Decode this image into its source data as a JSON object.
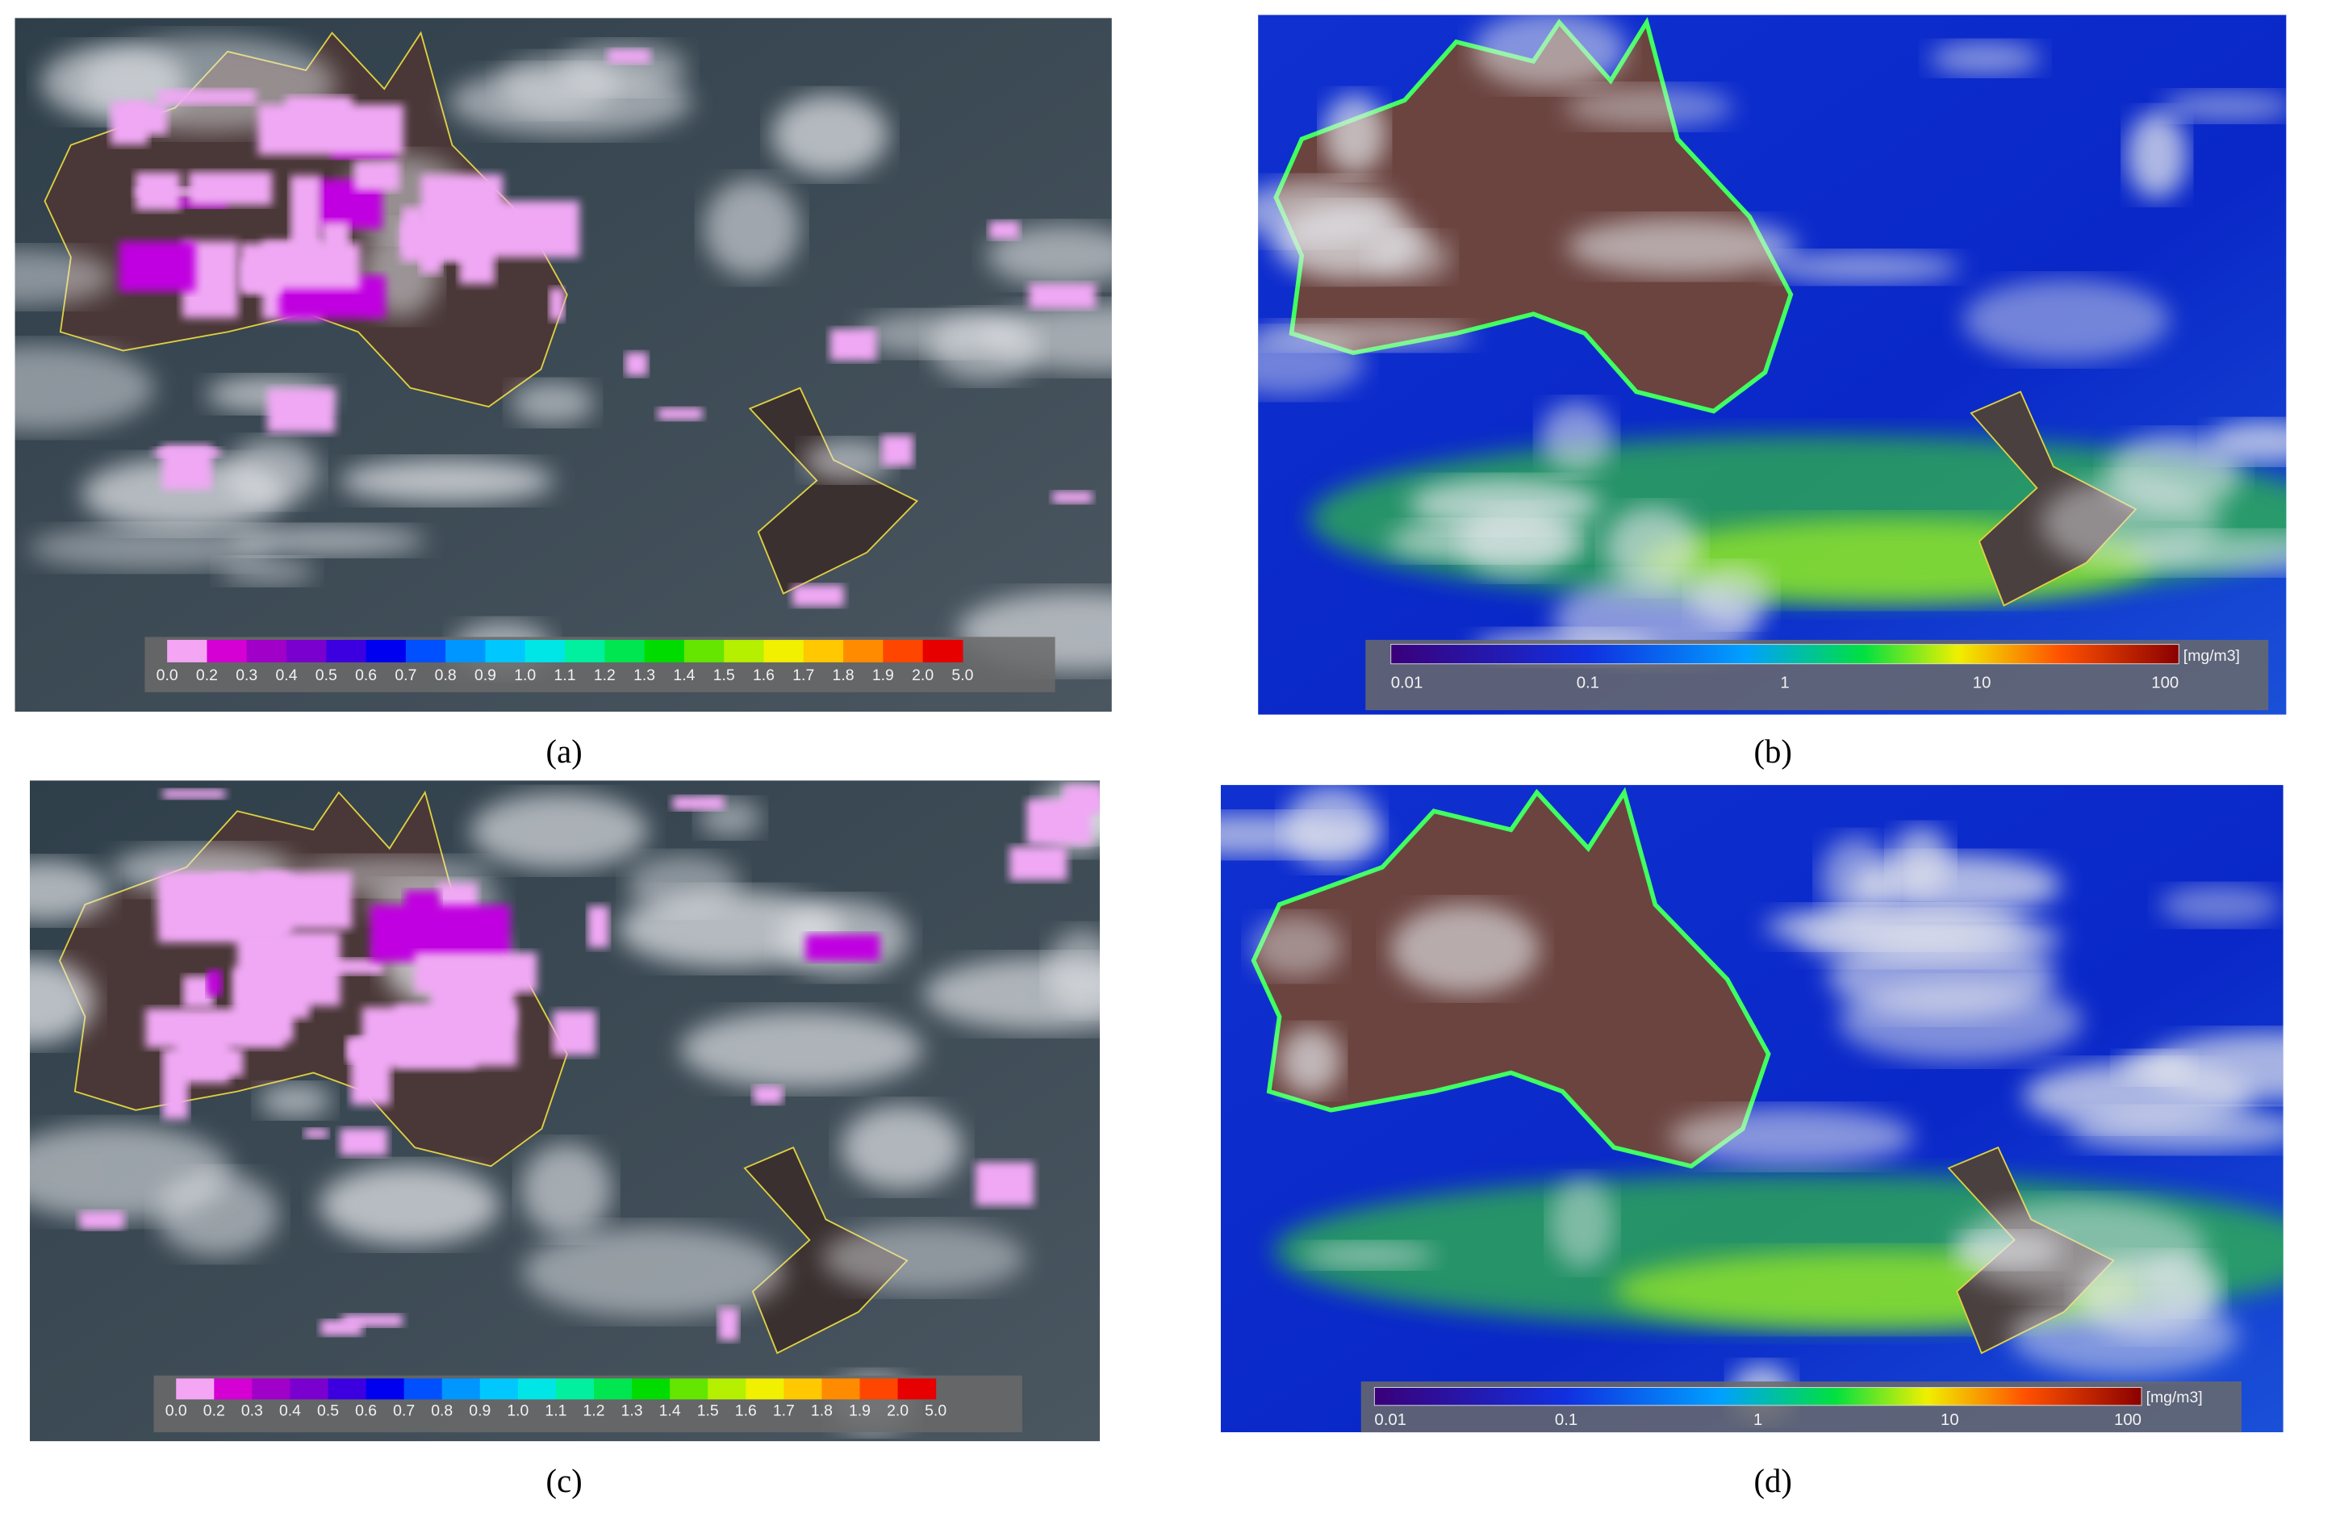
{
  "panels": [
    {
      "caption": "(a)",
      "colorbar": {
        "labels": [
          "0.0",
          "0.2",
          "0.3",
          "0.4",
          "0.5",
          "0.6",
          "0.7",
          "0.8",
          "0.9",
          "1.0",
          "1.1",
          "1.2",
          "1.3",
          "1.4",
          "1.5",
          "1.6",
          "1.7",
          "1.8",
          "1.9",
          "2.0",
          "5.0"
        ]
      }
    },
    {
      "caption": "(b)",
      "colorbar": {
        "labels": [
          "0.01",
          "0.1",
          "1",
          "10",
          "100"
        ],
        "unit": "[mg/m3]"
      }
    },
    {
      "caption": "(c)",
      "colorbar": {
        "labels": [
          "0.0",
          "0.2",
          "0.3",
          "0.4",
          "0.5",
          "0.6",
          "0.7",
          "0.8",
          "0.9",
          "1.0",
          "1.1",
          "1.2",
          "1.3",
          "1.4",
          "1.5",
          "1.6",
          "1.7",
          "1.8",
          "1.9",
          "2.0",
          "5.0"
        ]
      }
    },
    {
      "caption": "(d)",
      "colorbar": {
        "labels": [
          "0.01",
          "0.1",
          "1",
          "10",
          "100"
        ],
        "unit": "[mg/m3]"
      }
    }
  ]
}
